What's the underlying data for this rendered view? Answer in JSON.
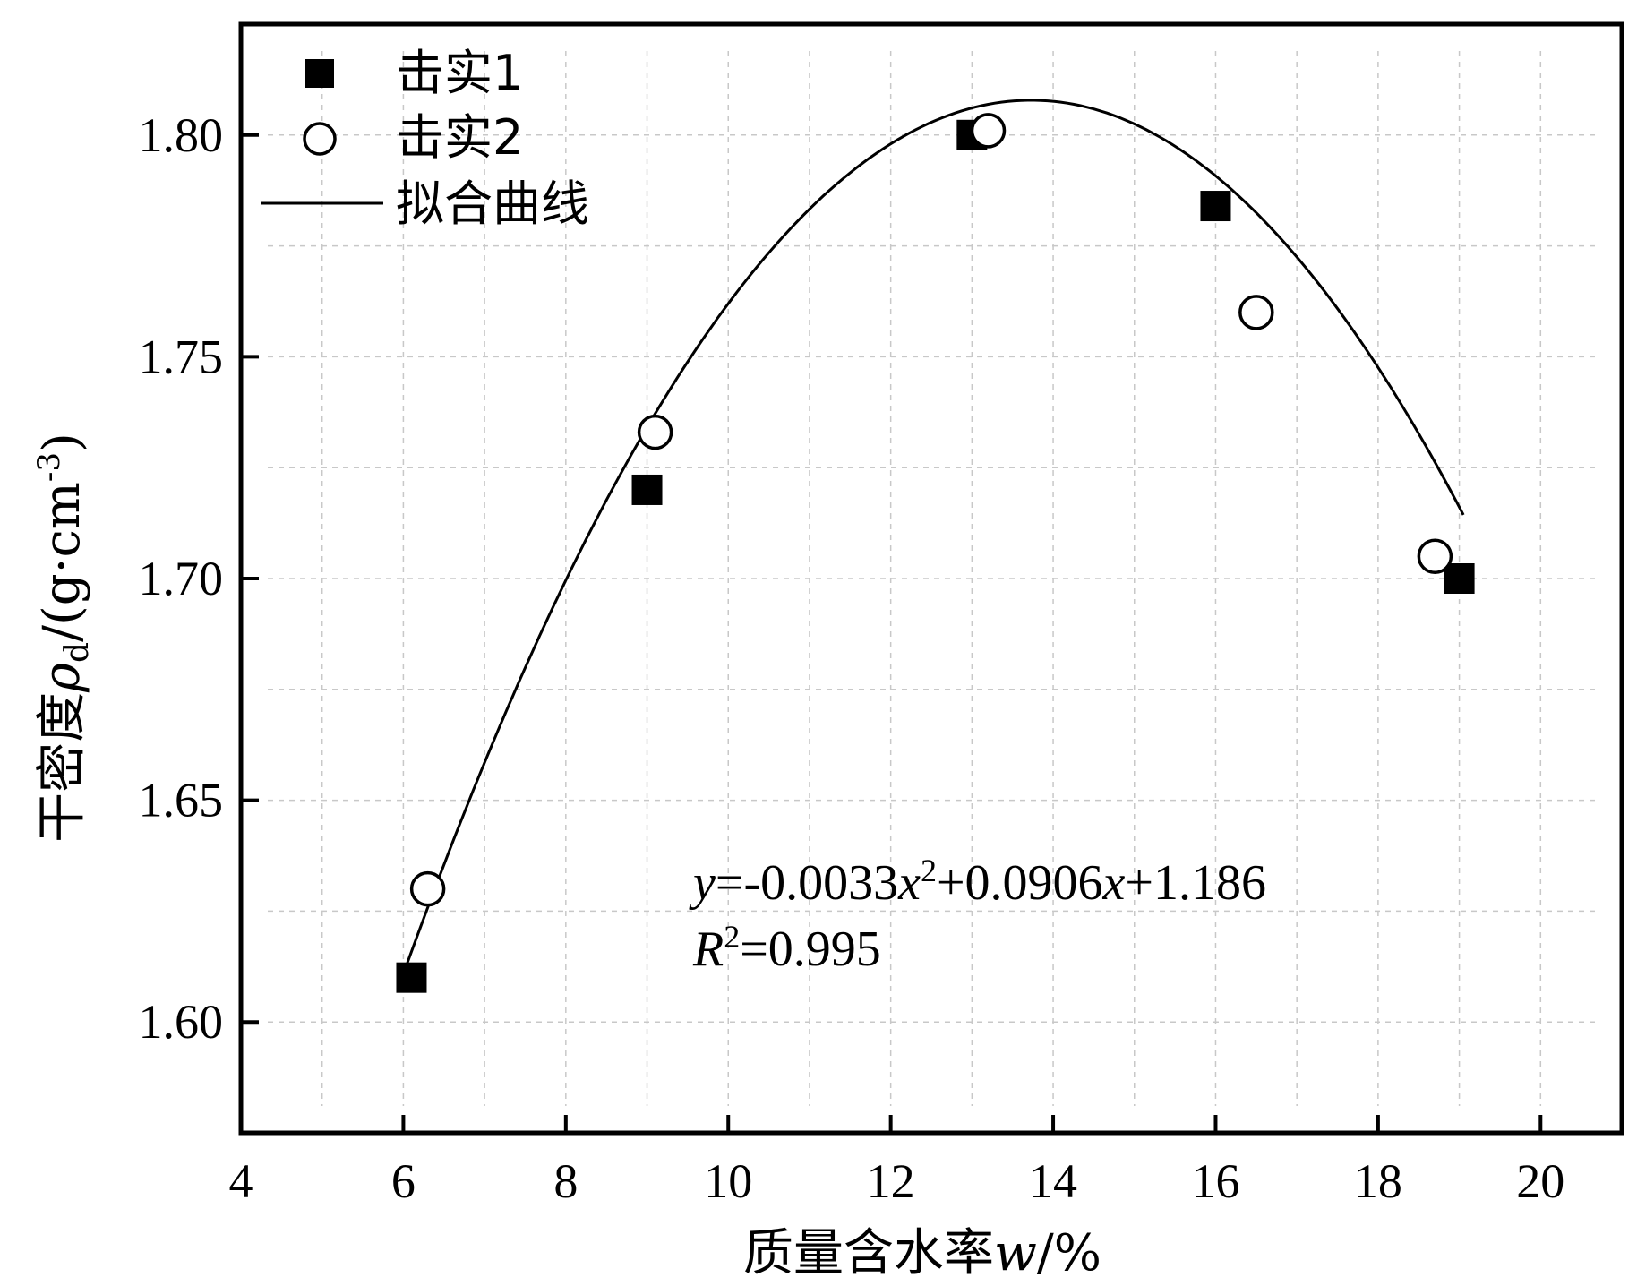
{
  "chart_data": {
    "type": "scatter",
    "xlabel": "质量含水率",
    "xlabel_var": "w",
    "xlabel_unit": "/%",
    "ylabel": "干密度",
    "ylabel_var": "ρ",
    "ylabel_sub": "d",
    "ylabel_unit": "/(g·cm",
    "ylabel_exp": "-3",
    "ylabel_close": ")",
    "xlim": [
      4,
      21
    ],
    "ylim": [
      1.575,
      1.825
    ],
    "xticks": [
      4,
      6,
      8,
      10,
      12,
      14,
      16,
      18,
      20
    ],
    "yticks": [
      1.6,
      1.65,
      1.7,
      1.75,
      1.8
    ],
    "ytick_labels": [
      "1.60",
      "1.65",
      "1.70",
      "1.75",
      "1.80"
    ],
    "grid": true,
    "legend_position": "top-left",
    "series": [
      {
        "name": "击实1",
        "marker": "filled-square",
        "x": [
          6.1,
          9.0,
          13.0,
          16.0,
          19.0
        ],
        "y": [
          1.61,
          1.72,
          1.8,
          1.784,
          1.7
        ]
      },
      {
        "name": "击实2",
        "marker": "open-circle",
        "x": [
          6.3,
          9.1,
          13.2,
          16.5,
          18.7
        ],
        "y": [
          1.63,
          1.733,
          1.801,
          1.76,
          1.705
        ]
      },
      {
        "name": "拟合曲线",
        "marker": "line",
        "fit": {
          "a": -0.0033,
          "b": 0.0906,
          "c": 1.186,
          "x_range": [
            6.05,
            19.05
          ]
        }
      }
    ],
    "annotation": {
      "y_var": "y",
      "eq_part1": "=-0.0033",
      "x_var1": "x",
      "sup2": "2",
      "eq_part2": "+0.0906",
      "x_var2": "x",
      "eq_part3": "+1.186",
      "r_var": "R",
      "r_sup": "2",
      "r_value": "=0.995"
    }
  },
  "colors": {
    "axis": "#000000",
    "grid": "#c8c8c8",
    "marker": "#000000"
  }
}
